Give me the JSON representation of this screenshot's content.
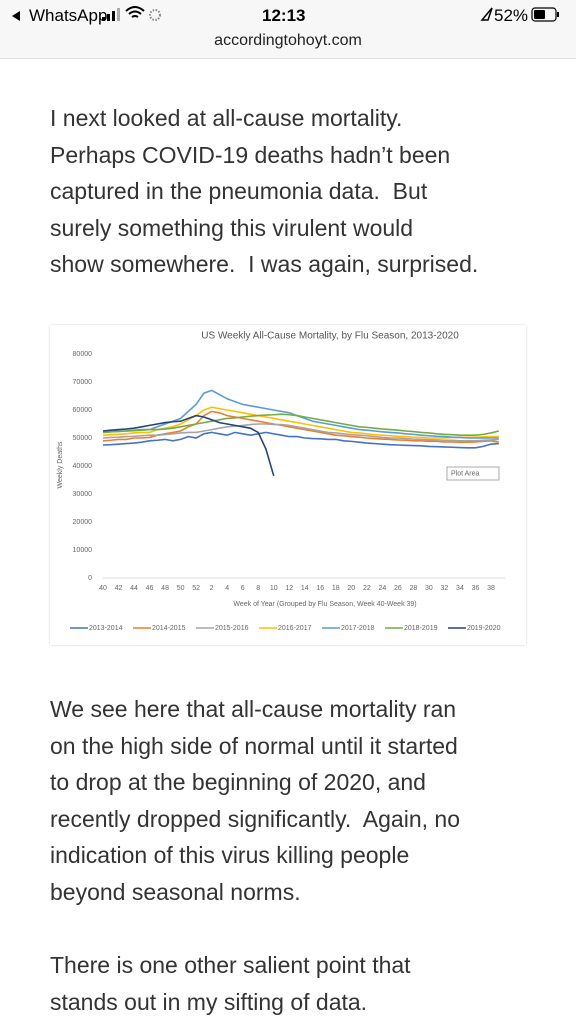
{
  "status_bar": {
    "back_app": "WhatsApp",
    "time": "12:13",
    "battery": "52%"
  },
  "address_bar": {
    "url": "accordingtohoyt.com"
  },
  "article": {
    "paragraphs": [
      {
        "lines": [
          "I next looked at all-cause mortality.",
          "Perhaps COVID-19 deaths hadn’t been",
          "captured in the pneumonia data.  But",
          "surely something this virulent would",
          "show somewhere.  I was again, surprised."
        ]
      },
      {
        "lines": [
          "We see here that all-cause mortality ran",
          "on the high side of normal until it started",
          "to drop at the beginning of 2020, and",
          "recently dropped significantly.  Again, no",
          "indication of this virus killing people",
          "beyond seasonal norms."
        ]
      },
      {
        "lines": [
          "There is one other salient point that",
          "stands out in my sifting of data."
        ]
      }
    ]
  },
  "chart_data": {
    "type": "line",
    "title": "US Weekly All-Cause Mortality, by Flu Season, 2013-2020",
    "x_label": "Week of Year (Grouped by Flu Season, Week 40-Week 39)",
    "y_label": "Weekly Deaths",
    "tooltip": "Plot Area",
    "ylim": [
      0,
      80000
    ],
    "yticks": [
      0,
      10000,
      20000,
      30000,
      40000,
      50000,
      60000,
      70000,
      80000
    ],
    "grid": false,
    "legend": "bottom",
    "categories": [
      "40",
      null,
      "42",
      null,
      "44",
      null,
      "46",
      null,
      "48",
      null,
      "50",
      null,
      "52",
      null,
      "2",
      null,
      "4",
      null,
      "6",
      null,
      "8",
      null,
      "10",
      null,
      "12",
      null,
      "14",
      null,
      "16",
      null,
      "18",
      null,
      "20",
      null,
      "22",
      null,
      "24",
      null,
      "26",
      null,
      "28",
      null,
      "30",
      null,
      "32",
      null,
      "34",
      null,
      "36",
      null,
      "38",
      null
    ],
    "series": [
      {
        "name": "2013-2014",
        "color": "#4472c4",
        "values": [
          47500,
          47600,
          47800,
          48000,
          48200,
          48500,
          49000,
          49200,
          49500,
          49000,
          49500,
          50500,
          50000,
          51500,
          52000,
          51500,
          51000,
          52000,
          51500,
          51000,
          51500,
          52000,
          51500,
          51000,
          50500,
          50500,
          50000,
          49800,
          49700,
          49500,
          49500,
          49000,
          48800,
          48500,
          48200,
          48000,
          47800,
          47600,
          47500,
          47400,
          47300,
          47200,
          47000,
          46900,
          46800,
          46700,
          46600,
          46500,
          46500,
          47000,
          47800,
          48000
        ]
      },
      {
        "name": "2014-2015",
        "color": "#ed7d31",
        "values": [
          49000,
          49200,
          49500,
          49500,
          50000,
          50000,
          50200,
          51000,
          51500,
          52000,
          52500,
          54000,
          55000,
          58000,
          59500,
          59000,
          58000,
          57500,
          57000,
          56500,
          56000,
          55500,
          55000,
          54500,
          54000,
          53500,
          53000,
          52500,
          52000,
          51500,
          51000,
          50800,
          50500,
          50300,
          50000,
          49800,
          49600,
          49500,
          49300,
          49200,
          49000,
          49000,
          48800,
          48800,
          48600,
          48600,
          48500,
          48500,
          48600,
          48800,
          49000,
          48500
        ]
      },
      {
        "name": "2015-2016",
        "color": "#a5a5a5",
        "values": [
          50000,
          50200,
          50300,
          50500,
          50600,
          50800,
          51000,
          51000,
          51200,
          51500,
          51800,
          52000,
          52000,
          52500,
          53000,
          53500,
          54000,
          54200,
          54500,
          54800,
          55000,
          55000,
          54800,
          54800,
          54500,
          54000,
          53500,
          53000,
          52500,
          52000,
          51800,
          51500,
          51200,
          51000,
          50800,
          50500,
          50200,
          50000,
          50000,
          49800,
          49600,
          49500,
          49400,
          49300,
          49200,
          49200,
          49000,
          49000,
          49000,
          49200,
          49300,
          49500
        ]
      },
      {
        "name": "2016-2017",
        "color": "#ffc000",
        "values": [
          51000,
          51200,
          51300,
          51500,
          51800,
          52000,
          52000,
          53000,
          53500,
          54000,
          55000,
          56500,
          58000,
          60000,
          61000,
          60500,
          60000,
          59500,
          59000,
          58500,
          58000,
          57500,
          57000,
          56500,
          56000,
          55500,
          55000,
          54500,
          54000,
          53500,
          53000,
          52500,
          52000,
          51800,
          51500,
          51200,
          51000,
          50800,
          50600,
          50500,
          50300,
          50200,
          50000,
          50000,
          50000,
          50200,
          50200,
          50300,
          50300,
          50400,
          50500,
          50500
        ]
      },
      {
        "name": "2017-2018",
        "color": "#5b9bd5",
        "values": [
          52000,
          52200,
          52500,
          52500,
          52800,
          53000,
          53000,
          54000,
          55000,
          56000,
          57000,
          59500,
          62000,
          66000,
          67000,
          65500,
          64000,
          63000,
          62000,
          61500,
          61000,
          60500,
          60000,
          59500,
          59000,
          58000,
          57000,
          56000,
          55500,
          55000,
          54500,
          54000,
          53500,
          53000,
          52800,
          52500,
          52200,
          52000,
          51800,
          51500,
          51300,
          51000,
          50800,
          50600,
          50500,
          50300,
          50200,
          50000,
          50000,
          50000,
          50000,
          50000
        ]
      },
      {
        "name": "2018-2019",
        "color": "#70ad47",
        "values": [
          52000,
          52200,
          52300,
          52500,
          52600,
          52800,
          53000,
          53000,
          53200,
          53500,
          54000,
          54500,
          55000,
          55500,
          56000,
          56500,
          57000,
          57200,
          57500,
          57800,
          58000,
          58200,
          58300,
          58500,
          58300,
          58000,
          57500,
          57000,
          56500,
          56000,
          55500,
          55000,
          54500,
          54000,
          53800,
          53500,
          53200,
          53000,
          52800,
          52500,
          52300,
          52000,
          51800,
          51500,
          51300,
          51200,
          51000,
          51000,
          51000,
          51300,
          51800,
          52500
        ]
      },
      {
        "name": "2019-2020",
        "color": "#264478",
        "values": [
          52500,
          52800,
          53000,
          53200,
          53500,
          54000,
          54500,
          55000,
          55500,
          55800,
          56000,
          57000,
          58000,
          57500,
          56500,
          55500,
          55000,
          54500,
          54000,
          53500,
          52000,
          46000,
          36500,
          null,
          null,
          null,
          null,
          null,
          null,
          null,
          null,
          null,
          null,
          null,
          null,
          null,
          null,
          null,
          null,
          null,
          null,
          null,
          null,
          null,
          null,
          null,
          null,
          null,
          null,
          null,
          null,
          null
        ]
      }
    ]
  }
}
